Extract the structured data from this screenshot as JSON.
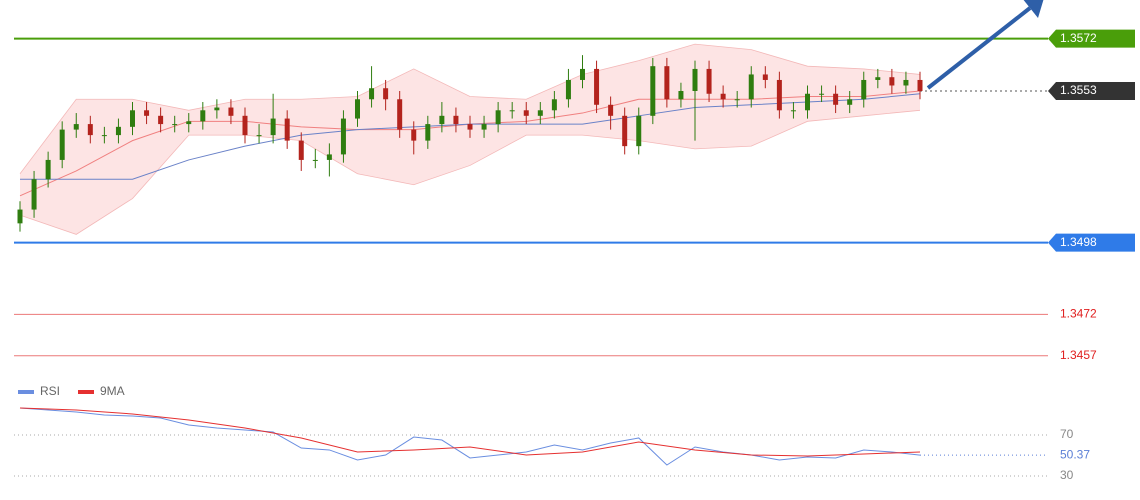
{
  "chart_data": [
    {
      "type": "candlestick",
      "xlim": [
        0,
        64
      ],
      "ylim": [
        1.345,
        1.3586
      ],
      "up_color": "#2f7d10",
      "down_color": "#b3231d",
      "open": [
        1.3505,
        1.351,
        1.3521,
        1.3528,
        1.3539,
        1.3541,
        1.3537,
        1.3537,
        1.354,
        1.3546,
        1.3544,
        1.3541,
        1.3541,
        1.3542,
        1.3546,
        1.3547,
        1.3544,
        1.3537,
        1.3537,
        1.3543,
        1.3535,
        1.3528,
        1.3528,
        1.353,
        1.3543,
        1.355,
        1.3554,
        1.355,
        1.3539,
        1.3535,
        1.3541,
        1.3544,
        1.3541,
        1.3539,
        1.3541,
        1.3546,
        1.3546,
        1.3544,
        1.3546,
        1.355,
        1.3557,
        1.3561,
        1.3548,
        1.3544,
        1.3533,
        1.3544,
        1.3562,
        1.355,
        1.3553,
        1.3561,
        1.3552,
        1.355,
        1.355,
        1.3559,
        1.3557,
        1.3546,
        1.3546,
        1.3552,
        1.3552,
        1.3548,
        1.355,
        1.3557,
        1.3558,
        1.3555,
        1.3557
      ],
      "high": [
        1.3513,
        1.3524,
        1.3531,
        1.3542,
        1.3545,
        1.3544,
        1.354,
        1.3543,
        1.3549,
        1.3549,
        1.3547,
        1.3544,
        1.3545,
        1.3549,
        1.355,
        1.355,
        1.3547,
        1.3541,
        1.3552,
        1.3546,
        1.3538,
        1.3532,
        1.3534,
        1.3546,
        1.3553,
        1.3562,
        1.3557,
        1.3553,
        1.3542,
        1.3544,
        1.3549,
        1.3547,
        1.3544,
        1.3544,
        1.3549,
        1.3549,
        1.3549,
        1.3549,
        1.3553,
        1.3561,
        1.3566,
        1.3564,
        1.3551,
        1.3547,
        1.3547,
        1.3565,
        1.3565,
        1.3556,
        1.3564,
        1.3564,
        1.3555,
        1.3553,
        1.3562,
        1.3562,
        1.356,
        1.3549,
        1.3555,
        1.3555,
        1.3555,
        1.3553,
        1.356,
        1.3561,
        1.3561,
        1.356,
        1.356
      ],
      "low": [
        1.3502,
        1.3507,
        1.3518,
        1.3525,
        1.3536,
        1.3534,
        1.3534,
        1.3534,
        1.3537,
        1.3541,
        1.3538,
        1.3538,
        1.3538,
        1.3539,
        1.3543,
        1.3541,
        1.3534,
        1.3534,
        1.3534,
        1.3532,
        1.3524,
        1.3525,
        1.3522,
        1.3527,
        1.354,
        1.3547,
        1.3546,
        1.3536,
        1.353,
        1.3532,
        1.3538,
        1.3538,
        1.3536,
        1.3536,
        1.3538,
        1.3543,
        1.3541,
        1.3541,
        1.3543,
        1.3547,
        1.3554,
        1.3545,
        1.3539,
        1.353,
        1.353,
        1.3541,
        1.3547,
        1.3547,
        1.3535,
        1.3549,
        1.3547,
        1.3547,
        1.3547,
        1.3554,
        1.3543,
        1.3543,
        1.3543,
        1.3549,
        1.3545,
        1.3545,
        1.3547,
        1.3554,
        1.3552,
        1.3552,
        1.355
      ],
      "close": [
        1.351,
        1.3521,
        1.3528,
        1.3539,
        1.3541,
        1.3537,
        1.3537,
        1.354,
        1.3546,
        1.3544,
        1.3541,
        1.3541,
        1.3542,
        1.3546,
        1.3547,
        1.3544,
        1.3537,
        1.3537,
        1.3543,
        1.3535,
        1.3528,
        1.3528,
        1.353,
        1.3543,
        1.355,
        1.3554,
        1.355,
        1.3539,
        1.3535,
        1.3541,
        1.3544,
        1.3541,
        1.3539,
        1.3541,
        1.3546,
        1.3546,
        1.3544,
        1.3546,
        1.355,
        1.3557,
        1.3561,
        1.3548,
        1.3544,
        1.3533,
        1.3544,
        1.3562,
        1.355,
        1.3553,
        1.3561,
        1.3552,
        1.355,
        1.355,
        1.3559,
        1.3557,
        1.3546,
        1.3546,
        1.3552,
        1.3552,
        1.3548,
        1.355,
        1.3557,
        1.3558,
        1.3555,
        1.3557,
        1.3553
      ],
      "band": {
        "color": "#f3b8b8",
        "fill": "#fde4e4",
        "x": [
          0,
          4,
          8,
          12,
          16,
          20,
          24,
          28,
          32,
          36,
          40,
          44,
          48,
          52,
          56,
          60,
          64
        ],
        "upper": [
          1.3523,
          1.355,
          1.355,
          1.3546,
          1.355,
          1.355,
          1.3551,
          1.3561,
          1.3551,
          1.355,
          1.3559,
          1.3564,
          1.357,
          1.3568,
          1.3562,
          1.3561,
          1.3559
        ],
        "lower": [
          1.3508,
          1.3501,
          1.3514,
          1.3537,
          1.3537,
          1.3535,
          1.3523,
          1.3519,
          1.3526,
          1.3537,
          1.3537,
          1.3535,
          1.3532,
          1.3533,
          1.3542,
          1.3544,
          1.3546
        ]
      },
      "lines": [
        {
          "color": "#f08080",
          "x": [
            0,
            4,
            8,
            12,
            16,
            20,
            24,
            28,
            32,
            36,
            40,
            44,
            48,
            52,
            56,
            60,
            64
          ],
          "values": [
            1.3515,
            1.3524,
            1.3535,
            1.3542,
            1.3542,
            1.354,
            1.3539,
            1.3539,
            1.3541,
            1.3542,
            1.3545,
            1.355,
            1.355,
            1.355,
            1.3551,
            1.3551,
            1.3553
          ]
        },
        {
          "color": "#6a82c8",
          "x": [
            0,
            4,
            8,
            12,
            16,
            20,
            24,
            28,
            32,
            36,
            40,
            44,
            48,
            52,
            56,
            60,
            64
          ],
          "values": [
            1.3521,
            1.3521,
            1.3521,
            1.3528,
            1.3533,
            1.3537,
            1.3539,
            1.354,
            1.3541,
            1.3541,
            1.3541,
            1.3544,
            1.3547,
            1.3548,
            1.3549,
            1.355,
            1.3552
          ]
        }
      ],
      "levels": [
        {
          "value": 1.3572,
          "color": "#4a9e0a",
          "style": "tag"
        },
        {
          "value": 1.3553,
          "color": "#333333",
          "style": "current"
        },
        {
          "value": 1.3498,
          "color": "#2f7be8",
          "style": "tag"
        },
        {
          "value": 1.3472,
          "color": "#e02020",
          "style": "text"
        },
        {
          "value": 1.3457,
          "color": "#e02020",
          "style": "text"
        }
      ]
    },
    {
      "type": "line",
      "xlim": [
        0,
        64
      ],
      "ylim": [
        20,
        100
      ],
      "yticks": [
        70,
        30
      ],
      "current": 50.37,
      "current_color": "#5b7fd6",
      "series": [
        {
          "name": "RSI",
          "color": "#6a8ee0",
          "x": [
            0,
            2,
            4,
            6,
            8,
            10,
            12,
            14,
            16,
            18,
            20,
            22,
            24,
            26,
            28,
            30,
            32,
            34,
            36,
            38,
            40,
            42,
            44,
            46,
            48,
            50,
            52,
            54,
            56,
            58,
            60,
            62,
            64
          ],
          "values": [
            96.3,
            94.4,
            92.4,
            89.5,
            88.5,
            86.6,
            79.8,
            76.8,
            74.9,
            72.9,
            57.3,
            55.4,
            45.6,
            50.5,
            68.0,
            65.1,
            47.6,
            50.5,
            53.4,
            60.2,
            55.4,
            62.2,
            67.1,
            40.7,
            58.3,
            53.4,
            50.5,
            45.6,
            48.5,
            47.6,
            55.4,
            53.4,
            50.37
          ]
        },
        {
          "name": "9MA",
          "color": "#e53030",
          "x": [
            0,
            4,
            8,
            12,
            16,
            20,
            24,
            28,
            32,
            36,
            40,
            44,
            48,
            52,
            56,
            60,
            64
          ],
          "values": [
            96.3,
            94.4,
            90.5,
            84.6,
            76.8,
            67.1,
            53.4,
            55.4,
            58.3,
            50.5,
            53.4,
            63.2,
            55.4,
            50.5,
            49.5,
            51.5,
            53.4
          ]
        }
      ]
    }
  ]
}
